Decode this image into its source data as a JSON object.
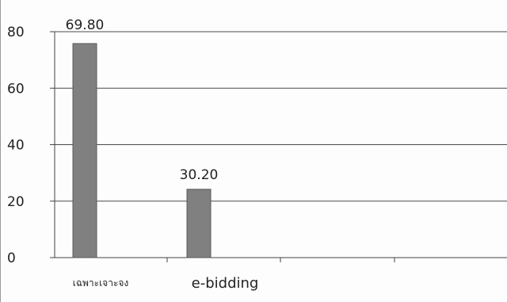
{
  "chart_data": {
    "type": "bar",
    "categories": [
      "เฉพาะเจาะจง",
      "e-bidding"
    ],
    "values": [
      69.8,
      30.2
    ],
    "data_labels": [
      "69.80",
      "30.20"
    ],
    "yticks": [
      "0",
      "20",
      "40",
      "60",
      "80"
    ],
    "ylim": [
      0,
      80
    ],
    "grid": true,
    "bar_color": "#808080",
    "grid_color": "#4a4a4a"
  }
}
